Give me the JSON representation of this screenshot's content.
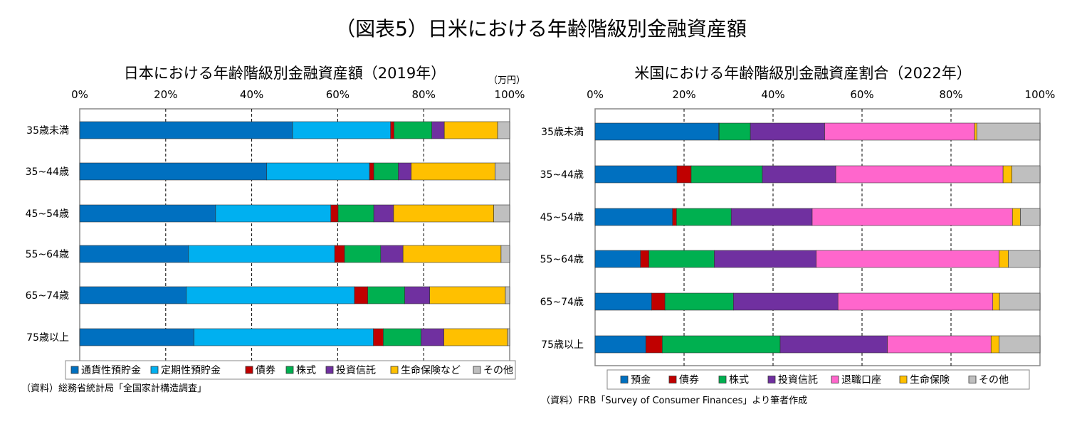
{
  "title": "（図表5）日米における年齢階級別金融資産額",
  "chart_data": [
    {
      "type": "bar",
      "orientation": "horizontal-stacked-100",
      "title": "日本における年齢階級別金融資産額（2019年）",
      "unit_label": "（万円）",
      "xlim": [
        0,
        100
      ],
      "xticks": [
        "0%",
        "20%",
        "40%",
        "60%",
        "80%",
        "100%"
      ],
      "grid": "vertical-dashed",
      "legend_position": "bottom",
      "source": "（資料）総務省統計局「全国家計構造調査」",
      "categories": [
        "35歳未満",
        "35~44歳",
        "45~54歳",
        "55~64歳",
        "65~74歳",
        "75歳以上"
      ],
      "series": [
        {
          "name": "通貨性預貯金",
          "color": "#0070C0",
          "values": [
            49.5,
            43.5,
            31.6,
            25.3,
            24.8,
            26.6
          ]
        },
        {
          "name": "定期性預貯金",
          "color": "#00B0F0",
          "values": [
            22.8,
            23.9,
            26.8,
            34.0,
            39.1,
            41.7
          ]
        },
        {
          "name": "債券",
          "color": "#C00000",
          "values": [
            0.8,
            1.0,
            1.7,
            2.3,
            3.1,
            2.3
          ]
        },
        {
          "name": "株式",
          "color": "#00B050",
          "values": [
            8.8,
            5.7,
            8.3,
            8.4,
            8.6,
            8.8
          ]
        },
        {
          "name": "投資信託",
          "color": "#7030A0",
          "values": [
            2.9,
            3.0,
            4.6,
            5.2,
            5.8,
            5.3
          ]
        },
        {
          "name": "生命保険など",
          "color": "#FFC000",
          "values": [
            12.4,
            19.5,
            23.3,
            22.8,
            17.6,
            14.8
          ]
        },
        {
          "name": "その他",
          "color": "#BFBFBF",
          "values": [
            2.8,
            3.4,
            3.7,
            2.0,
            1.0,
            0.5
          ]
        }
      ]
    },
    {
      "type": "bar",
      "orientation": "horizontal-stacked-100",
      "title": "米国における年齢階級別金融資産割合（2022年）",
      "xlim": [
        0,
        100
      ],
      "xticks": [
        "0%",
        "20%",
        "40%",
        "60%",
        "80%",
        "100%"
      ],
      "grid": "vertical-dashed",
      "legend_position": "bottom",
      "source": "（資料）FRB「Survey of Consumer Finances」より筆者作成",
      "categories": [
        "35歳未満",
        "35~44歳",
        "45~54歳",
        "55~64歳",
        "65~74歳",
        "75歳以上"
      ],
      "series": [
        {
          "name": "預金",
          "color": "#0070C0",
          "values": [
            27.8,
            18.4,
            17.4,
            10.2,
            12.7,
            11.4
          ]
        },
        {
          "name": "債券",
          "color": "#C00000",
          "values": [
            0.1,
            3.2,
            0.9,
            1.9,
            3.0,
            3.7
          ]
        },
        {
          "name": "株式",
          "color": "#00B050",
          "values": [
            7.0,
            16.0,
            12.3,
            14.7,
            15.4,
            26.5
          ]
        },
        {
          "name": "投資信託",
          "color": "#7030A0",
          "values": [
            16.7,
            16.5,
            18.2,
            22.9,
            23.5,
            24.1
          ]
        },
        {
          "name": "退職口座",
          "color": "#FF66CC",
          "values": [
            33.7,
            37.6,
            45.0,
            41.1,
            34.8,
            23.3
          ]
        },
        {
          "name": "生命保険",
          "color": "#FFC000",
          "values": [
            0.5,
            2.0,
            1.8,
            2.1,
            1.5,
            1.8
          ]
        },
        {
          "name": "その他",
          "color": "#BFBFBF",
          "values": [
            14.2,
            6.3,
            4.4,
            7.1,
            9.1,
            9.2
          ]
        }
      ]
    }
  ]
}
